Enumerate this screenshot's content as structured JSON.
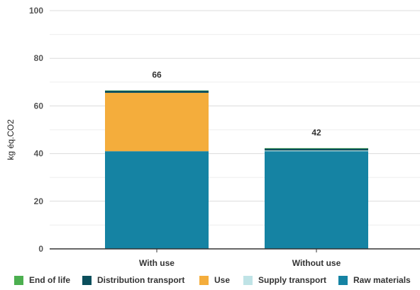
{
  "chart_data": {
    "type": "bar",
    "stacked": true,
    "categories": [
      "With use",
      "Without use"
    ],
    "series": [
      {
        "name": "Raw materials",
        "color": "#1583a3",
        "values": [
          41,
          41
        ]
      },
      {
        "name": "Supply transport",
        "color": "#bfe3e6",
        "values": [
          0,
          0.3
        ]
      },
      {
        "name": "Use",
        "color": "#f4ad3c",
        "values": [
          24.5,
          0
        ]
      },
      {
        "name": "Distribution transport",
        "color": "#0b4f5c",
        "values": [
          0.9,
          0.8
        ]
      },
      {
        "name": "End of life",
        "color": "#4caf50",
        "values": [
          0.1,
          0.2
        ]
      }
    ],
    "totals": [
      "66",
      "42"
    ],
    "ylabel": "kg éq.CO2",
    "xlabel": "",
    "title": "",
    "ylim": [
      0,
      100
    ],
    "yticks": [
      "0",
      "20",
      "40",
      "60",
      "80",
      "100"
    ],
    "grid": true,
    "legend_position": "bottom",
    "legend_order": [
      "End of life",
      "Distribution transport",
      "Use",
      "Supply transport",
      "Raw materials"
    ]
  }
}
